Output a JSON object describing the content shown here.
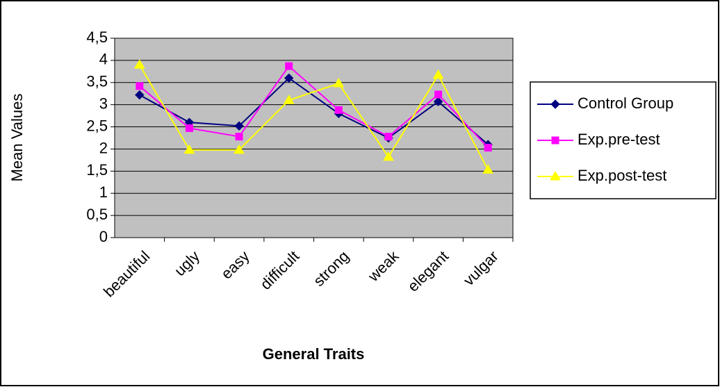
{
  "chart_data": {
    "type": "line",
    "xlabel": "General Traits",
    "ylabel": "Mean Values",
    "categories": [
      "beautiful",
      "ugly",
      "easy",
      "difficult",
      "strong",
      "weak",
      "elegant",
      "vulgar"
    ],
    "series": [
      {
        "name": "Control Group",
        "color": "#000080",
        "marker": "diamond",
        "values": [
          3.22,
          2.6,
          2.52,
          3.6,
          2.8,
          2.25,
          3.07,
          2.1
        ]
      },
      {
        "name": "Exp.pre-test",
        "color": "#ff00ff",
        "marker": "square",
        "values": [
          3.42,
          2.47,
          2.28,
          3.87,
          2.88,
          2.28,
          3.23,
          2.03
        ]
      },
      {
        "name": "Exp.post-test",
        "color": "#ffff00",
        "marker": "triangle",
        "values": [
          3.9,
          1.98,
          1.98,
          3.1,
          3.48,
          1.82,
          3.67,
          1.53
        ]
      }
    ],
    "ylim": [
      0,
      4.5
    ],
    "yticks": [
      0,
      {
        "value": 0.5,
        "label": "0,5"
      },
      1,
      {
        "value": 1.5,
        "label": "1,5"
      },
      2,
      {
        "value": 2.5,
        "label": "2,5"
      },
      3,
      {
        "value": 3.5,
        "label": "3,5"
      },
      4,
      {
        "value": 4.5,
        "label": "4,5"
      }
    ],
    "grid": true,
    "legend": "right",
    "plot_background": "#c0c0c0"
  }
}
